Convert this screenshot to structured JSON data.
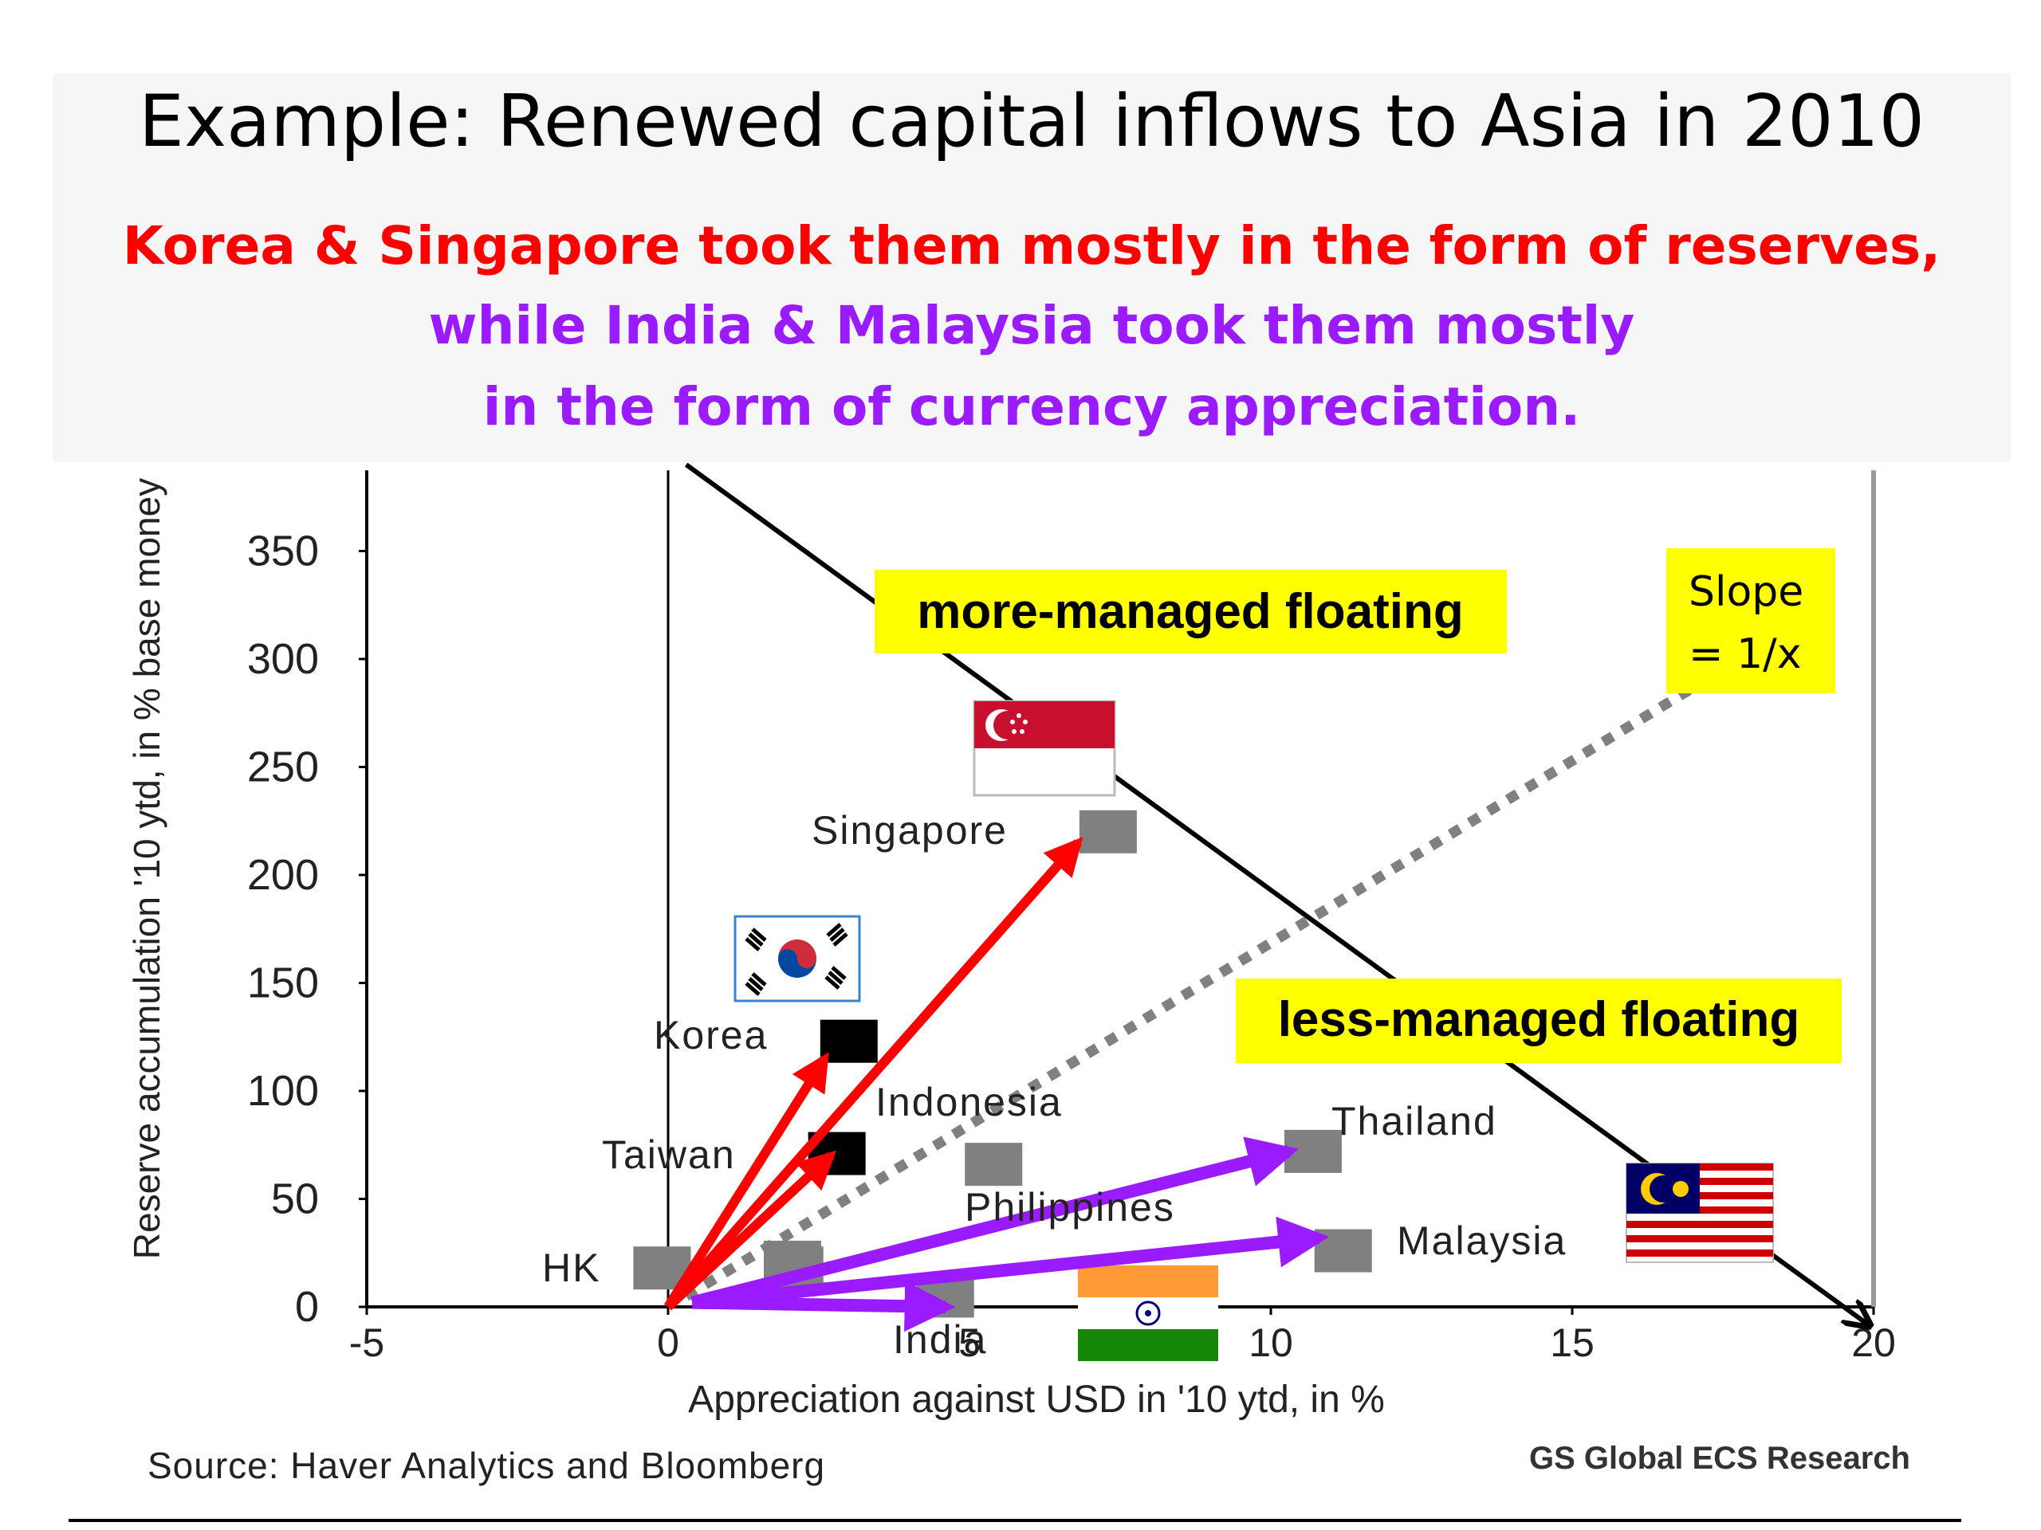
{
  "slide": {
    "title": "Example: Renewed capital inflows to Asia in 2010",
    "subtitle_red": "Korea & Singapore took them mostly in the form of reserves,",
    "subtitle_purple_1": "while India & Malaysia took them mostly",
    "subtitle_purple_2": "in the form of currency appreciation.",
    "source": "Source: Haver Analytics and Bloomberg",
    "brand": "GS Global ECS Research"
  },
  "colors": {
    "reserves_arrows": "#ff0000",
    "appreciation_arrows": "#9b1bff",
    "callout_fill": "#ffff00",
    "marker_grey": "#808080",
    "marker_black": "#000000"
  },
  "chart_data": {
    "type": "scatter",
    "xlabel": "Appreciation against USD in '10 ytd, in %",
    "ylabel": "Reserve accumulation '10 ytd, in % base money",
    "xlim": [
      -5,
      20
    ],
    "ylim": [
      0,
      380
    ],
    "xticks": [
      -5,
      0,
      5,
      10,
      15,
      20
    ],
    "yticks": [
      0,
      50,
      100,
      150,
      200,
      250,
      300,
      350
    ],
    "grid": false,
    "points": [
      {
        "label": "HK",
        "x": -0.1,
        "y": 18,
        "color": "#808080"
      },
      {
        "label": "",
        "x": 2.1,
        "y": 18,
        "color": "#808080"
      },
      {
        "label": "Korea",
        "x": 3.0,
        "y": 123,
        "color": "#000000"
      },
      {
        "label": "Taiwan",
        "x": 2.8,
        "y": 71,
        "color": "#000000"
      },
      {
        "label": "Indonesia",
        "x": 5.4,
        "y": 66,
        "color": "#808080"
      },
      {
        "label": "Singapore",
        "x": 7.3,
        "y": 220,
        "color": "#808080"
      },
      {
        "label": "Philippines",
        "x": "",
        "y": "",
        "color": "#808080"
      },
      {
        "label": "India",
        "x": 4.6,
        "y": 5,
        "color": "#808080"
      },
      {
        "label": "Thailand",
        "x": 10.7,
        "y": 72,
        "color": "#808080"
      },
      {
        "label": "Malaysia",
        "x": 11.2,
        "y": 26,
        "color": "#808080"
      }
    ],
    "arrows": [
      {
        "target": "Singapore",
        "from": [
          0,
          0
        ],
        "to": [
          6.8,
          215
        ],
        "color": "#ff0000"
      },
      {
        "target": "Korea",
        "from": [
          0,
          0
        ],
        "to": [
          2.6,
          115
        ],
        "color": "#ff0000"
      },
      {
        "target": "Taiwan",
        "from": [
          0,
          0
        ],
        "to": [
          2.7,
          70
        ],
        "color": "#ff0000"
      },
      {
        "target": "Thailand",
        "from": [
          0.4,
          2
        ],
        "to": [
          10.3,
          72
        ],
        "color": "#9b1bff"
      },
      {
        "target": "Malaysia",
        "from": [
          0.4,
          2
        ],
        "to": [
          10.8,
          32
        ],
        "color": "#9b1bff"
      },
      {
        "target": "India",
        "from": [
          0.4,
          2
        ],
        "to": [
          4.6,
          0
        ],
        "color": "#9b1bff"
      }
    ],
    "reference_lines": [
      {
        "name": "boundary",
        "style": "solid",
        "from": [
          0.3,
          390
        ],
        "to": [
          19.9,
          -8
        ]
      },
      {
        "name": "slope",
        "style": "dotted",
        "from": [
          0.3,
          5
        ],
        "to": [
          17.2,
          290
        ]
      }
    ],
    "annotations": [
      {
        "text": "more-managed floating"
      },
      {
        "text": "less-managed floating"
      },
      {
        "text": "Slope\n= 1/x"
      }
    ]
  }
}
